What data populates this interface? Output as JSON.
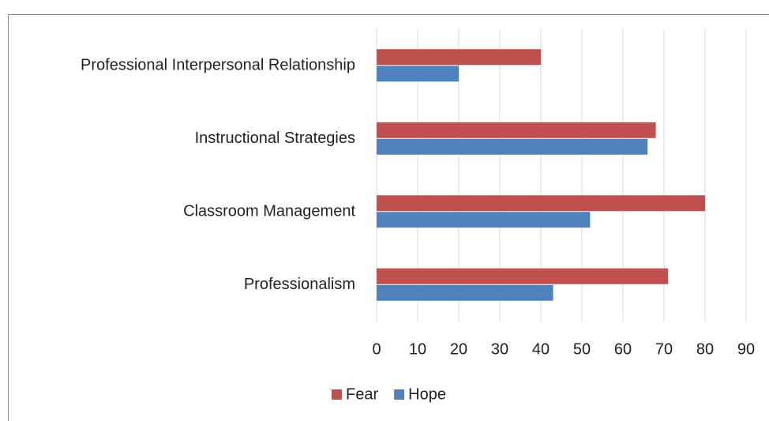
{
  "chart_data": {
    "type": "hbar",
    "categories": [
      "Professional Interpersonal Relationship",
      "Instructional Strategies",
      "Classroom Management",
      "Professionalism"
    ],
    "series": [
      {
        "name": "Fear",
        "color": "#c0504d",
        "values": [
          40,
          68,
          80,
          71
        ]
      },
      {
        "name": "Hope",
        "color": "#4f81bd",
        "values": [
          20,
          66,
          52,
          43
        ]
      }
    ],
    "xlim": [
      0,
      90
    ],
    "xticks": [
      0,
      10,
      20,
      30,
      40,
      50,
      60,
      70,
      80,
      90
    ],
    "grid": true,
    "legend": "bottom"
  }
}
